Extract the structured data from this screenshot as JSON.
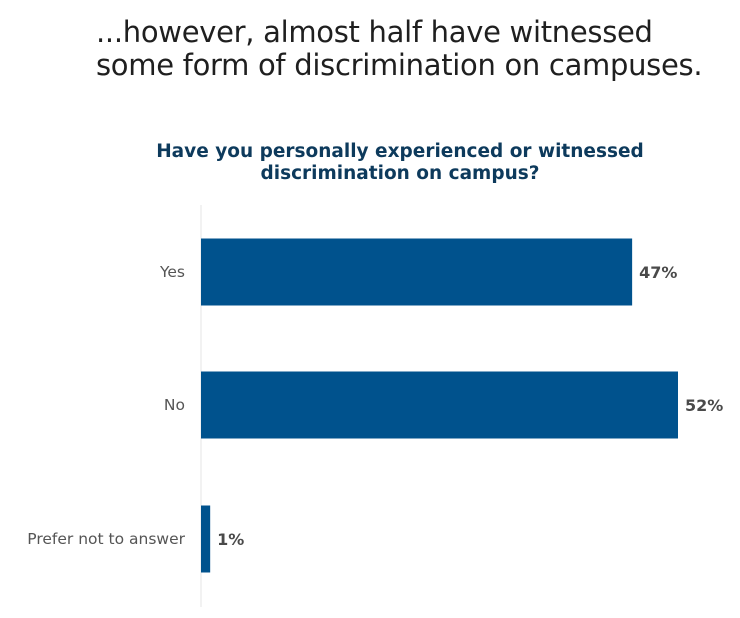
{
  "headline": {
    "line1": "...however, almost half have witnessed",
    "line2": "some form of discrimination on campuses."
  },
  "chart_data": {
    "type": "bar",
    "orientation": "horizontal",
    "title_line1": "Have you personally experienced or witnessed",
    "title_line2": "discrimination on campus?",
    "categories": [
      "Yes",
      "No",
      "Prefer not to answer"
    ],
    "values": [
      47,
      52,
      1
    ],
    "value_labels": [
      "47%",
      "52%",
      "1%"
    ],
    "xlim": [
      0,
      52
    ],
    "bar_color": "#00528d",
    "axis_color": "#e6e6e6",
    "grid": false,
    "legend": "none"
  }
}
